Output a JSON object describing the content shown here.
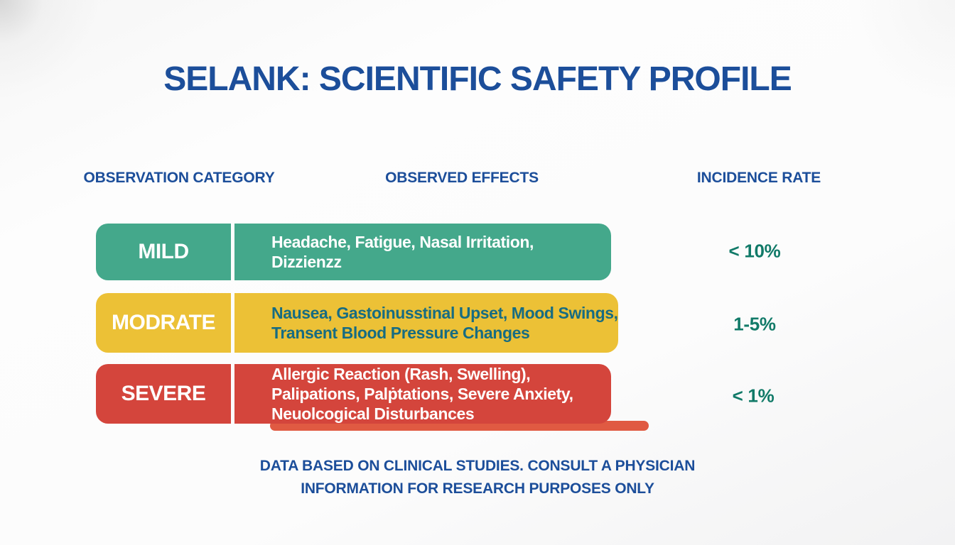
{
  "title": "SELANK: SCIENTIFIC SAFETY PROFILE",
  "columns": {
    "category": "OBSERVATION CATEGORY",
    "effects": "OBSERVED EFFECTS",
    "incidence": "INCIDENCE RATE"
  },
  "rows": [
    {
      "category": "MILD",
      "effects": "Headache, Fatigue, Nasal Irritation,\nDizzienzz",
      "incidence": "< 10%",
      "color": "#44a88b",
      "effects_text_color": "#ffffff"
    },
    {
      "category": "MODRATE",
      "effects": "Nausea, Gastoinusstinal Upset, Mood Swings,\nTransent Blood Pressure Changes",
      "incidence": "1-5%",
      "color": "#ecc136",
      "effects_text_color": "#176c82"
    },
    {
      "category": "SEVERE",
      "effects": "Allergic Reaction (Rash, Swelling),\nPalipations, Palṗtations, Severe Anxiety,\nNeuolcogical Disturbances",
      "incidence": "< 1%",
      "color": "#d4453c",
      "effects_text_color": "#ffffff"
    }
  ],
  "disclaimer": {
    "line1": "DATA BASED ON CLINICAL STUDIES. CONSULT A PHYSICIAN",
    "line2": "INFORMATION FOR RESEARCH PURPOSES ONLY"
  },
  "colors": {
    "heading_blue": "#1c4e9a",
    "incidence_text": "#117a68",
    "underline_bar": "#e05a42"
  }
}
